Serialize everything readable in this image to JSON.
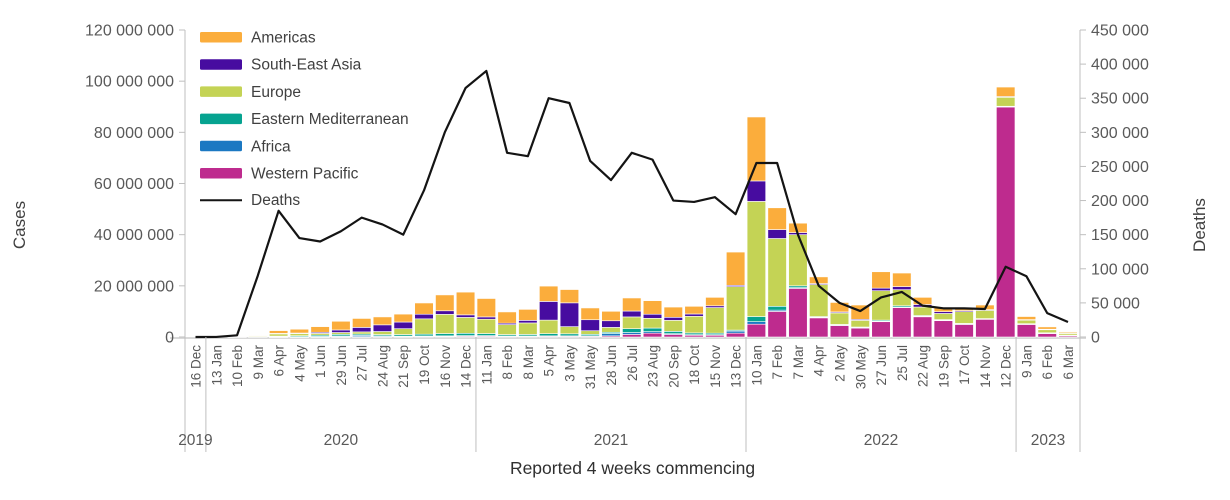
{
  "chart_data": {
    "type": "bar",
    "subtype": "stacked-bar-with-line",
    "title": "",
    "xlabel": "Reported 4 weeks commencing",
    "left_axis": {
      "label": "Cases",
      "max": 120000000,
      "ticks": [
        "0",
        "20 000 000",
        "40 000 000",
        "60 000 000",
        "80 000 000",
        "100 000 000",
        "120 000 000"
      ]
    },
    "right_axis": {
      "label": "Deaths",
      "max": 450000,
      "ticks": [
        "0",
        "50 000",
        "100 000",
        "150 000",
        "200 000",
        "250 000",
        "300 000",
        "350 000",
        "400 000",
        "450 000"
      ]
    },
    "categories": [
      "16 Dec",
      "13 Jan",
      "10 Feb",
      "9 Mar",
      "6 Apr",
      "4 May",
      "1 Jun",
      "29 Jun",
      "27 Jul",
      "24 Aug",
      "21 Sep",
      "19 Oct",
      "16 Nov",
      "14 Dec",
      "11 Jan",
      "8 Feb",
      "8 Mar",
      "5 Apr",
      "3 May",
      "31 May",
      "28 Jun",
      "26 Jul",
      "23 Aug",
      "20 Sep",
      "18 Oct",
      "15 Nov",
      "13 Dec",
      "10 Jan",
      "7 Feb",
      "7 Mar",
      "4 Apr",
      "2 May",
      "30 May",
      "27 Jun",
      "25 Jul",
      "22 Aug",
      "19 Sep",
      "17 Oct",
      "14 Nov",
      "12 Dec",
      "9 Jan",
      "6 Feb",
      "6 Mar"
    ],
    "year_groups": [
      {
        "label": "2019",
        "count": 1
      },
      {
        "label": "2020",
        "count": 13
      },
      {
        "label": "2021",
        "count": 13
      },
      {
        "label": "2022",
        "count": 13
      },
      {
        "label": "2023",
        "count": 3
      }
    ],
    "stack_order_bottom_up": [
      "Western Pacific",
      "Africa",
      "Eastern Mediterranean",
      "Europe",
      "South-East Asia",
      "Americas"
    ],
    "series": [
      {
        "name": "Americas",
        "color": "#FBAD3C",
        "values_millions": [
          0,
          0,
          0.005,
          0.08,
          1.1,
          1.5,
          2.2,
          3.4,
          3.5,
          3.1,
          3.1,
          4.4,
          6.2,
          8.9,
          7.2,
          4.4,
          4.3,
          6.0,
          5.2,
          4.6,
          3.7,
          5.1,
          5.3,
          4.0,
          3.0,
          3.3,
          13.0,
          25.0,
          8.5,
          3.7,
          2.6,
          3.7,
          5.6,
          6.4,
          5.3,
          2.8,
          1.6,
          1.2,
          1.8,
          3.7,
          1.2,
          0.9,
          0.4
        ]
      },
      {
        "name": "South-East Asia",
        "color": "#470CA0",
        "values_millions": [
          0,
          0,
          0,
          0.01,
          0.05,
          0.2,
          0.45,
          1.0,
          1.75,
          2.6,
          2.6,
          1.8,
          1.4,
          1.0,
          0.9,
          0.55,
          1.0,
          7.3,
          9.3,
          4.3,
          2.6,
          2.3,
          1.6,
          1.2,
          0.9,
          0.7,
          0.5,
          8.0,
          3.5,
          0.8,
          0.4,
          0.4,
          0.4,
          1.0,
          1.2,
          1.0,
          0.7,
          0.4,
          0.3,
          0.3,
          0.1,
          0.1,
          0.15
        ]
      },
      {
        "name": "Europe",
        "color": "#C4D355",
        "values_millions": [
          0,
          0,
          0.001,
          0.35,
          1.0,
          0.85,
          0.7,
          0.7,
          0.85,
          1.2,
          2.3,
          6.0,
          7.5,
          6.2,
          5.6,
          3.9,
          4.5,
          5.3,
          2.8,
          1.4,
          1.9,
          4.6,
          3.8,
          4.3,
          6.5,
          10.0,
          17.0,
          45.0,
          26.5,
          20.0,
          12.5,
          4.5,
          2.6,
          11.5,
          6.3,
          3.3,
          2.4,
          4.6,
          3.2,
          3.5,
          1.5,
          1.3,
          0.7
        ]
      },
      {
        "name": "Eastern Mediterranean",
        "color": "#06A390",
        "values_millions": [
          0,
          0,
          0.001,
          0.06,
          0.2,
          0.35,
          0.5,
          0.65,
          0.5,
          0.5,
          0.6,
          0.7,
          0.9,
          0.9,
          0.8,
          0.55,
          0.6,
          0.85,
          0.8,
          0.6,
          0.5,
          1.5,
          1.4,
          0.9,
          0.7,
          0.6,
          0.4,
          2.0,
          1.5,
          0.7,
          0.3,
          0.2,
          0.2,
          0.4,
          0.5,
          0.3,
          0.2,
          0.2,
          0.1,
          0.1,
          0.1,
          0.1,
          0.1
        ]
      },
      {
        "name": "Africa",
        "color": "#1B78C2",
        "values_millions": [
          0,
          0,
          0,
          0.01,
          0.1,
          0.1,
          0.15,
          0.3,
          0.5,
          0.3,
          0.2,
          0.2,
          0.2,
          0.25,
          0.25,
          0.15,
          0.15,
          0.15,
          0.15,
          0.15,
          0.9,
          0.75,
          0.6,
          0.3,
          0.2,
          0.2,
          0.8,
          1.0,
          0.5,
          0.3,
          0.2,
          0.2,
          0.2,
          0.2,
          0.2,
          0.1,
          0.1,
          0.1,
          0.1,
          0.1,
          0.1,
          0.05,
          0.05
        ]
      },
      {
        "name": "Western Pacific",
        "color": "#BE2B8E",
        "values_millions": [
          0,
          0.01,
          0.07,
          0.1,
          0.05,
          0.05,
          0.05,
          0.1,
          0.15,
          0.15,
          0.15,
          0.2,
          0.25,
          0.3,
          0.3,
          0.25,
          0.25,
          0.3,
          0.3,
          0.3,
          0.45,
          1.0,
          1.5,
          1.0,
          0.7,
          0.7,
          1.5,
          5.0,
          10.0,
          19.0,
          7.5,
          4.5,
          3.5,
          6.0,
          11.5,
          8.0,
          6.5,
          5.0,
          7.0,
          90.0,
          5.0,
          1.5,
          0.6
        ]
      }
    ],
    "deaths_series": {
      "name": "Deaths",
      "color": "#141414",
      "values": [
        0,
        100,
        2500,
        90000,
        185000,
        145000,
        140000,
        155000,
        175000,
        165000,
        150000,
        215000,
        300000,
        365000,
        390000,
        270000,
        265000,
        350000,
        343000,
        258000,
        230000,
        270000,
        260000,
        200000,
        198000,
        205000,
        180000,
        255000,
        255000,
        150000,
        75000,
        50000,
        38000,
        58000,
        66000,
        46000,
        42000,
        42000,
        41000,
        103000,
        89000,
        35000,
        22000
      ]
    },
    "legend_position": "top-left-inside",
    "grid": "off",
    "axis_color": "#BFBFBF",
    "text_color": "#595959"
  }
}
